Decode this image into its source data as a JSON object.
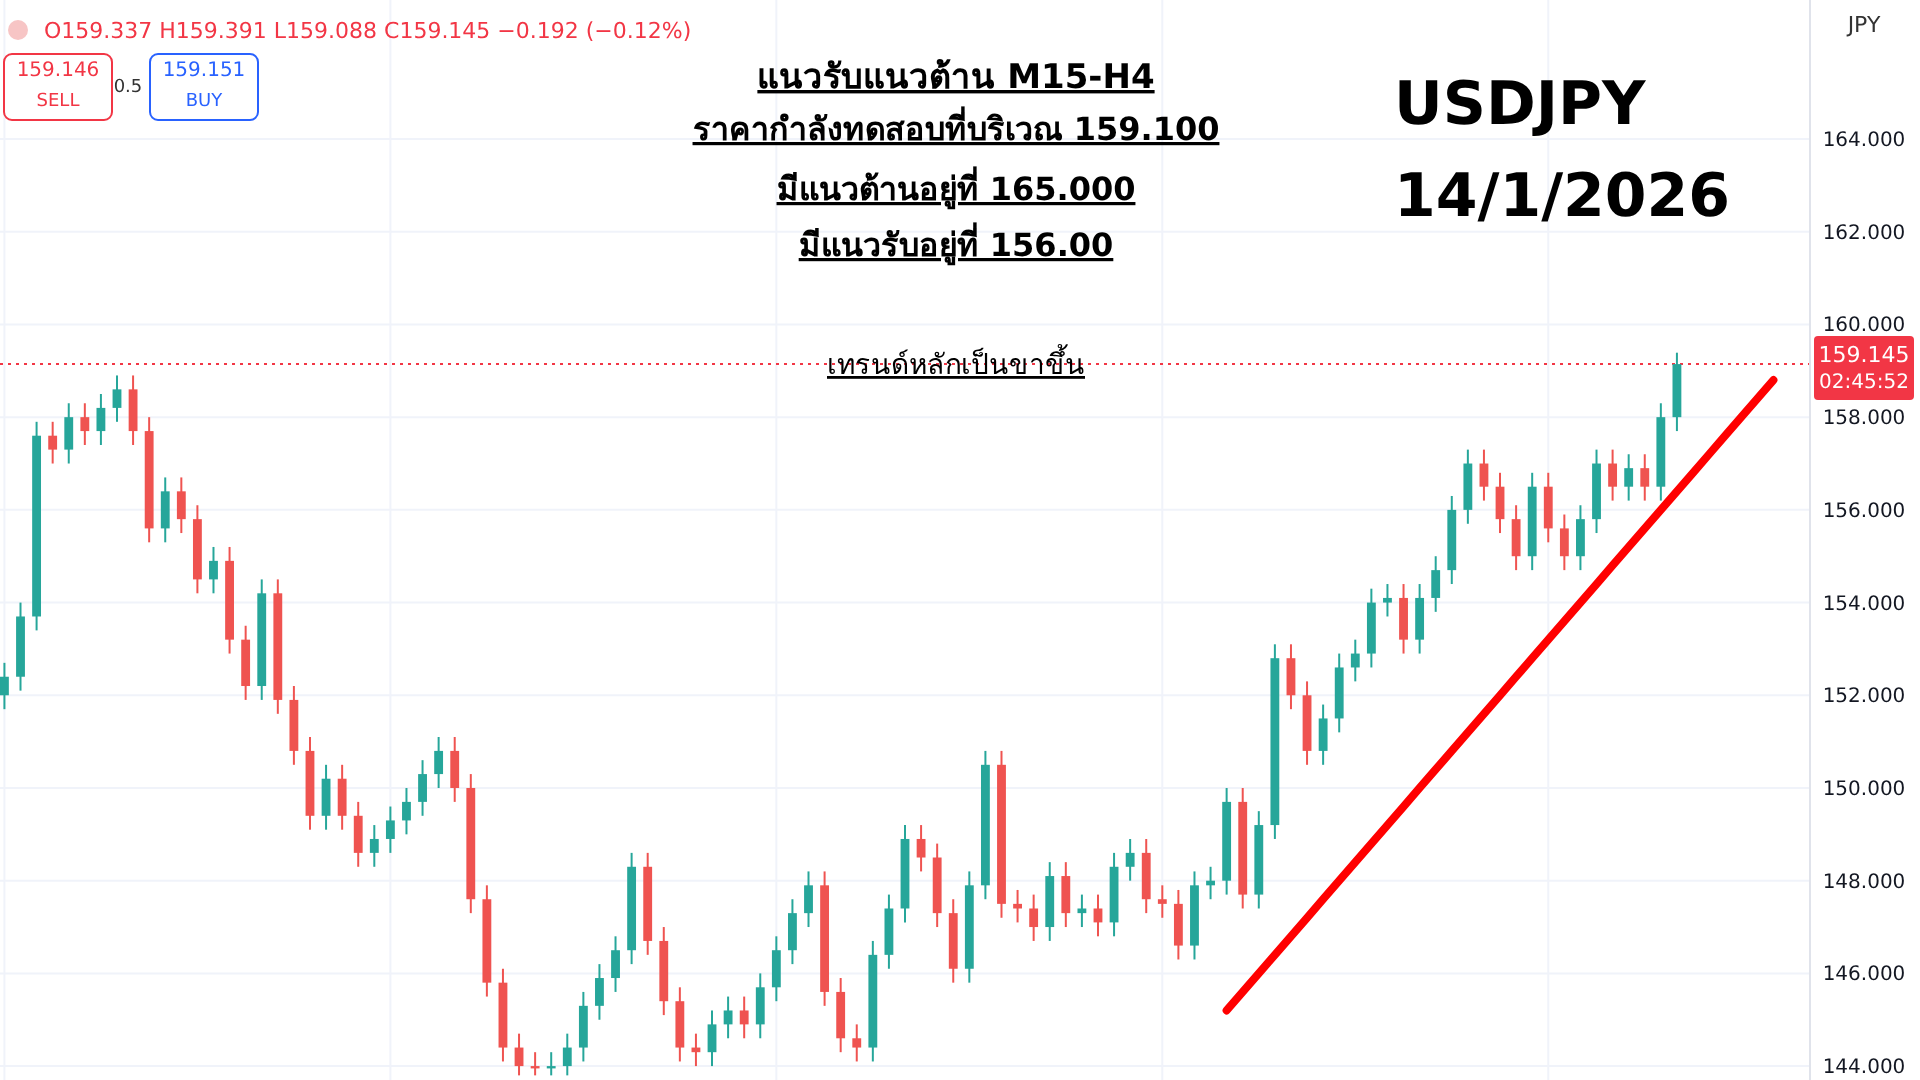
{
  "chart_data": {
    "type": "candlestick",
    "title": "แนวรับแนวต้าน M15-H4",
    "annotations": [
      "ราคากำลังทดสอบที่บริเวณ 159.100",
      "มีแนวต้านอยู่ที่  165.000",
      "มีแนวรับอยู่ที่ 156.00",
      "เทรนด์หลักเป็นขาขึ้น",
      "USDJPY",
      "14/1/2026",
      "O159.337 H159.391 L159.088 C159.145 −0.192 (−0.12%)",
      "159.146",
      "SELL",
      "0.5",
      "159.151",
      "BUY",
      "JPY",
      "02:45:52"
    ],
    "categories": [
      null,
      null,
      null,
      null,
      null,
      null,
      null,
      null,
      null,
      null,
      null,
      null,
      null,
      null,
      null,
      null,
      null,
      null,
      null,
      null,
      null,
      null,
      null,
      null,
      null,
      null,
      null,
      null,
      null,
      null,
      null,
      null,
      null,
      null,
      null,
      null,
      null,
      null,
      null,
      null,
      null,
      null,
      null,
      null,
      null,
      null,
      null,
      null,
      null,
      null,
      null,
      null,
      null,
      null,
      null,
      null,
      null,
      null,
      null,
      null,
      null,
      null,
      null,
      null,
      null,
      null,
      null,
      null,
      null,
      null,
      null,
      null,
      null,
      null,
      null,
      null,
      null,
      null,
      null,
      null,
      null,
      null,
      null,
      null,
      null,
      null,
      null,
      null,
      null,
      null,
      null,
      null,
      null,
      null,
      null,
      null,
      null,
      null,
      null,
      null,
      null,
      null,
      null,
      null,
      null,
      null,
      null,
      null,
      null,
      null,
      null,
      null,
      null
    ],
    "ohlc": [
      [
        152.0,
        152.7,
        151.7,
        152.4
      ],
      [
        152.4,
        154.0,
        152.1,
        153.7
      ],
      [
        153.7,
        157.9,
        153.4,
        157.6
      ],
      [
        157.6,
        157.9,
        157.0,
        157.3
      ],
      [
        157.3,
        158.3,
        157.0,
        158.0
      ],
      [
        158.0,
        158.3,
        157.4,
        157.7
      ],
      [
        157.7,
        158.5,
        157.4,
        158.2
      ],
      [
        158.2,
        158.9,
        157.9,
        158.6
      ],
      [
        158.6,
        158.9,
        157.4,
        157.7
      ],
      [
        157.7,
        158.0,
        155.3,
        155.6
      ],
      [
        155.6,
        156.7,
        155.3,
        156.4
      ],
      [
        156.4,
        156.7,
        155.5,
        155.8
      ],
      [
        155.8,
        156.1,
        154.2,
        154.5
      ],
      [
        154.5,
        155.2,
        154.2,
        154.9
      ],
      [
        154.9,
        155.2,
        152.9,
        153.2
      ],
      [
        153.2,
        153.5,
        151.9,
        152.2
      ],
      [
        152.2,
        154.5,
        151.9,
        154.2
      ],
      [
        154.2,
        154.5,
        151.6,
        151.9
      ],
      [
        151.9,
        152.2,
        150.5,
        150.8
      ],
      [
        150.8,
        151.1,
        149.1,
        149.4
      ],
      [
        149.4,
        150.5,
        149.1,
        150.2
      ],
      [
        150.2,
        150.5,
        149.1,
        149.4
      ],
      [
        149.4,
        149.7,
        148.3,
        148.6
      ],
      [
        148.6,
        149.2,
        148.3,
        148.9
      ],
      [
        148.9,
        149.6,
        148.6,
        149.3
      ],
      [
        149.3,
        150.0,
        149.0,
        149.7
      ],
      [
        149.7,
        150.6,
        149.4,
        150.3
      ],
      [
        150.3,
        151.1,
        150.0,
        150.8
      ],
      [
        150.8,
        151.1,
        149.7,
        150.0
      ],
      [
        150.0,
        150.3,
        147.3,
        147.6
      ],
      [
        147.6,
        147.9,
        145.5,
        145.8
      ],
      [
        145.8,
        146.1,
        144.1,
        144.4
      ],
      [
        144.4,
        144.7,
        143.8,
        144.0
      ],
      [
        144.0,
        144.3,
        143.8,
        143.95
      ],
      [
        143.95,
        144.3,
        143.8,
        144.0
      ],
      [
        144.0,
        144.7,
        143.8,
        144.4
      ],
      [
        144.4,
        145.6,
        144.1,
        145.3
      ],
      [
        145.3,
        146.2,
        145.0,
        145.9
      ],
      [
        145.9,
        146.8,
        145.6,
        146.5
      ],
      [
        146.5,
        148.6,
        146.2,
        148.3
      ],
      [
        148.3,
        148.6,
        146.4,
        146.7
      ],
      [
        146.7,
        147.0,
        145.1,
        145.4
      ],
      [
        145.4,
        145.7,
        144.1,
        144.4
      ],
      [
        144.4,
        144.7,
        144.0,
        144.3
      ],
      [
        144.3,
        145.2,
        144.0,
        144.9
      ],
      [
        144.9,
        145.5,
        144.6,
        145.2
      ],
      [
        145.2,
        145.5,
        144.6,
        144.9
      ],
      [
        144.9,
        146.0,
        144.6,
        145.7
      ],
      [
        145.7,
        146.8,
        145.4,
        146.5
      ],
      [
        146.5,
        147.6,
        146.2,
        147.3
      ],
      [
        147.3,
        148.2,
        147.0,
        147.9
      ],
      [
        147.9,
        148.2,
        145.3,
        145.6
      ],
      [
        145.6,
        145.9,
        144.3,
        144.6
      ],
      [
        144.6,
        144.9,
        144.1,
        144.4
      ],
      [
        144.4,
        146.7,
        144.1,
        146.4
      ],
      [
        146.4,
        147.7,
        146.1,
        147.4
      ],
      [
        147.4,
        149.2,
        147.1,
        148.9
      ],
      [
        148.9,
        149.2,
        148.2,
        148.5
      ],
      [
        148.5,
        148.8,
        147.0,
        147.3
      ],
      [
        147.3,
        147.6,
        145.8,
        146.1
      ],
      [
        146.1,
        148.2,
        145.8,
        147.9
      ],
      [
        147.9,
        150.8,
        147.6,
        150.5
      ],
      [
        150.5,
        150.8,
        147.2,
        147.5
      ],
      [
        147.5,
        147.8,
        147.1,
        147.4
      ],
      [
        147.4,
        147.7,
        146.7,
        147.0
      ],
      [
        147.0,
        148.4,
        146.7,
        148.1
      ],
      [
        148.1,
        148.4,
        147.0,
        147.3
      ],
      [
        147.3,
        147.7,
        147.0,
        147.4
      ],
      [
        147.4,
        147.7,
        146.8,
        147.1
      ],
      [
        147.1,
        148.6,
        146.8,
        148.3
      ],
      [
        148.3,
        148.9,
        148.0,
        148.6
      ],
      [
        148.6,
        148.9,
        147.3,
        147.6
      ],
      [
        147.6,
        147.9,
        147.2,
        147.5
      ],
      [
        147.5,
        147.8,
        146.3,
        146.6
      ],
      [
        146.6,
        148.2,
        146.3,
        147.9
      ],
      [
        147.9,
        148.3,
        147.6,
        148.0
      ],
      [
        148.0,
        150.0,
        147.7,
        149.7
      ],
      [
        149.7,
        150.0,
        147.4,
        147.7
      ],
      [
        147.7,
        149.5,
        147.4,
        149.2
      ],
      [
        149.2,
        153.1,
        148.9,
        152.8
      ],
      [
        152.8,
        153.1,
        151.7,
        152.0
      ],
      [
        152.0,
        152.3,
        150.5,
        150.8
      ],
      [
        150.8,
        151.8,
        150.5,
        151.5
      ],
      [
        151.5,
        152.9,
        151.2,
        152.6
      ],
      [
        152.6,
        153.2,
        152.3,
        152.9
      ],
      [
        152.9,
        154.3,
        152.6,
        154.0
      ],
      [
        154.0,
        154.4,
        153.7,
        154.1
      ],
      [
        154.1,
        154.4,
        152.9,
        153.2
      ],
      [
        153.2,
        154.4,
        152.9,
        154.1
      ],
      [
        154.1,
        155.0,
        153.8,
        154.7
      ],
      [
        154.7,
        156.3,
        154.4,
        156.0
      ],
      [
        156.0,
        157.3,
        155.7,
        157.0
      ],
      [
        157.0,
        157.3,
        156.2,
        156.5
      ],
      [
        156.5,
        156.8,
        155.5,
        155.8
      ],
      [
        155.8,
        156.1,
        154.7,
        155.0
      ],
      [
        155.0,
        156.8,
        154.7,
        156.5
      ],
      [
        156.5,
        156.8,
        155.3,
        155.6
      ],
      [
        155.6,
        155.9,
        154.7,
        155.0
      ],
      [
        155.0,
        156.1,
        154.7,
        155.8
      ],
      [
        155.8,
        157.3,
        155.5,
        157.0
      ],
      [
        157.0,
        157.3,
        156.2,
        156.5
      ],
      [
        156.5,
        157.2,
        156.2,
        156.9
      ],
      [
        156.9,
        157.2,
        156.2,
        156.5
      ],
      [
        156.5,
        158.3,
        156.2,
        158.0
      ],
      [
        158.0,
        159.391,
        157.7,
        159.145
      ],
      null,
      null,
      null,
      null,
      null,
      null,
      null,
      null
    ],
    "series": [
      {
        "type": "line",
        "color": "#ff0000",
        "values": [
          null,
          null,
          null,
          null,
          null,
          null,
          null,
          null,
          null,
          null,
          null,
          null,
          null,
          null,
          null,
          null,
          null,
          null,
          null,
          null,
          null,
          null,
          null,
          null,
          null,
          null,
          null,
          null,
          null,
          null,
          null,
          null,
          null,
          null,
          null,
          null,
          null,
          null,
          null,
          null,
          null,
          null,
          null,
          null,
          null,
          null,
          null,
          null,
          null,
          null,
          null,
          null,
          null,
          null,
          null,
          null,
          null,
          null,
          null,
          null,
          null,
          null,
          null,
          null,
          null,
          null,
          null,
          null,
          null,
          null,
          null,
          null,
          null,
          null,
          null,
          null,
          145.2,
          145.6,
          146.0,
          146.4,
          146.8,
          147.2,
          147.6,
          148.0,
          148.4,
          148.8,
          149.2,
          149.6,
          150.0,
          150.4,
          150.8,
          151.2,
          151.6,
          152.0,
          152.4,
          152.8,
          153.2,
          153.6,
          154.0,
          154.4,
          154.8,
          155.2,
          155.6,
          156.0,
          156.4,
          156.8,
          157.2,
          157.6,
          158.0,
          158.4,
          158.8,
          null,
          null
        ]
      }
    ],
    "ylim": [
      143.7,
      167
    ],
    "yticks": [
      {
        "value": 144,
        "label": "144.000"
      },
      {
        "value": 146,
        "label": "146.000"
      },
      {
        "value": 148,
        "label": "148.000"
      },
      {
        "value": 150,
        "label": "150.000"
      },
      {
        "value": 152,
        "label": "152.000"
      },
      {
        "value": 154,
        "label": "154.000"
      },
      {
        "value": 156,
        "label": "156.000"
      },
      {
        "value": 158,
        "label": "158.000"
      },
      {
        "value": 160,
        "label": "160.000"
      },
      {
        "value": 162,
        "label": "162.000"
      },
      {
        "value": 164,
        "label": "164.000"
      }
    ],
    "ref_lines": [
      {
        "axis": "y",
        "value": 159.145,
        "label": "159.145",
        "color": "#f23645",
        "line_style": "dotted"
      }
    ],
    "grid": true,
    "tick_labels": "y"
  }
}
